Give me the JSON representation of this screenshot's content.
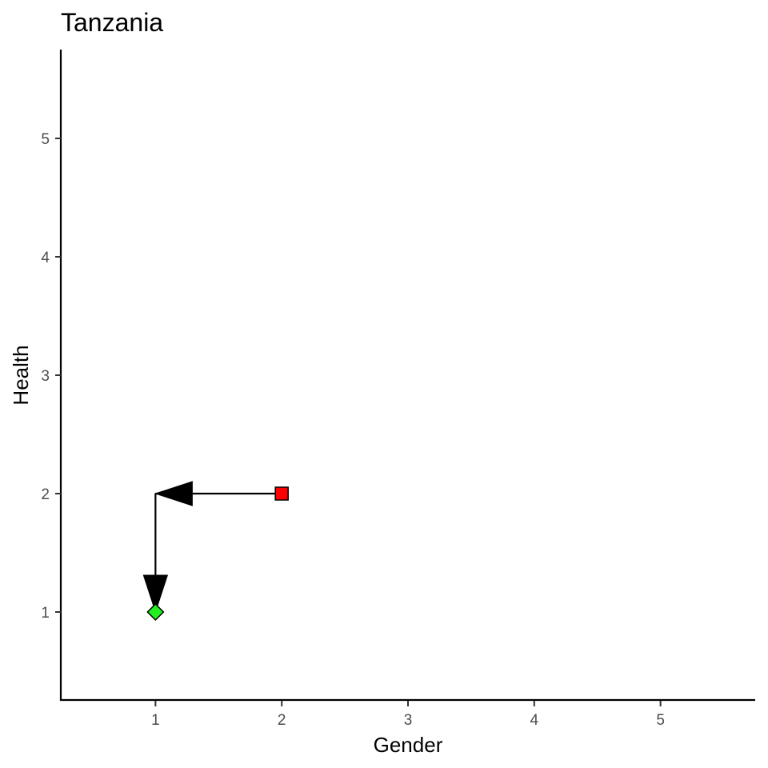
{
  "chart_data": {
    "type": "scatter",
    "title": "Tanzania",
    "xlabel": "Gender",
    "ylabel": "Health",
    "xlim": [
      0.25,
      5.75
    ],
    "ylim": [
      0.25,
      5.75
    ],
    "x_ticks": [
      1,
      2,
      3,
      4,
      5
    ],
    "y_ticks": [
      1,
      2,
      3,
      4,
      5
    ],
    "grid": false,
    "legend": "none",
    "points": [
      {
        "x": 2,
        "y": 2,
        "shape": "square",
        "color": "#ff0000"
      },
      {
        "x": 1,
        "y": 1,
        "shape": "diamond",
        "color": "#22ee22"
      }
    ],
    "arrows": [
      {
        "from": [
          2,
          2
        ],
        "to": [
          1,
          2
        ]
      },
      {
        "from": [
          1,
          2
        ],
        "to": [
          1,
          1
        ]
      }
    ]
  }
}
